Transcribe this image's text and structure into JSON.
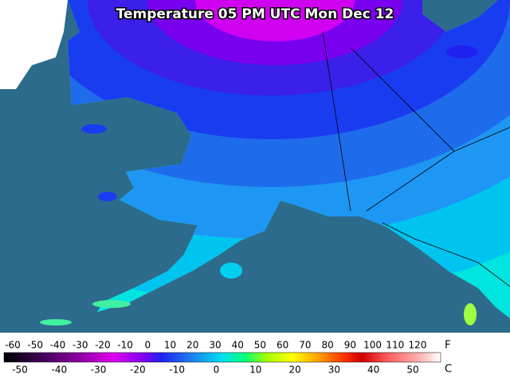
{
  "title": "Temperature 05 PM UTC Mon Dec 12",
  "legend": {
    "fahrenheit": {
      "unit": "F",
      "ticks": [
        -60,
        -50,
        -40,
        -30,
        -20,
        -10,
        0,
        10,
        20,
        30,
        40,
        50,
        60,
        70,
        80,
        90,
        100,
        110,
        120
      ]
    },
    "celsius": {
      "unit": "C",
      "ticks": [
        -50,
        -40,
        -30,
        -20,
        -10,
        0,
        10,
        20,
        30,
        40,
        50
      ]
    }
  }
}
